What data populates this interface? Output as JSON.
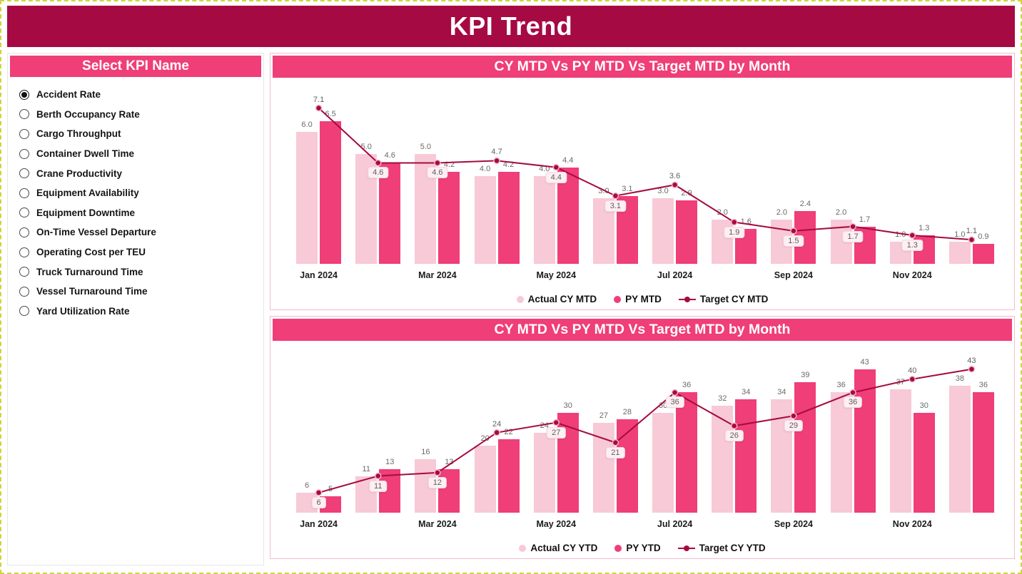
{
  "page": {
    "title": "KPI Trend"
  },
  "slicer": {
    "header": "Select KPI Name",
    "items": [
      {
        "label": "Accident Rate",
        "selected": true
      },
      {
        "label": "Berth Occupancy Rate",
        "selected": false
      },
      {
        "label": "Cargo Throughput",
        "selected": false
      },
      {
        "label": "Container Dwell Time",
        "selected": false
      },
      {
        "label": "Crane Productivity",
        "selected": false
      },
      {
        "label": "Equipment Availability",
        "selected": false
      },
      {
        "label": "Equipment Downtime",
        "selected": false
      },
      {
        "label": "On-Time Vessel Departure",
        "selected": false
      },
      {
        "label": "Operating Cost per TEU",
        "selected": false
      },
      {
        "label": "Truck Turnaround Time",
        "selected": false
      },
      {
        "label": "Vessel Turnaround Time",
        "selected": false
      },
      {
        "label": "Yard Utilization Rate",
        "selected": false
      }
    ]
  },
  "colors": {
    "header": "#a60a42",
    "accent_pink": "#ef3e78",
    "light_pink": "#f8c9d6",
    "target_line": "#a60a42",
    "label_gray": "#6a6a6a"
  },
  "chart_data": [
    {
      "type": "bar",
      "subtype": "column-and-line-combo",
      "title": "CY MTD Vs PY MTD Vs Target MTD by Month",
      "categories": [
        "Jan 2024",
        "Feb 2024",
        "Mar 2024",
        "Apr 2024",
        "May 2024",
        "Jun 2024",
        "Jul 2024",
        "Aug 2024",
        "Sep 2024",
        "Oct 2024",
        "Nov 2024",
        "Dec 2024"
      ],
      "x_tick_labels": [
        "Jan 2024",
        "Mar 2024",
        "May 2024",
        "Jul 2024",
        "Sep 2024",
        "Nov 2024"
      ],
      "decimals": 1,
      "ylim": [
        0,
        7.8
      ],
      "grid": false,
      "legend_position": "bottom",
      "series": [
        {
          "name": "Actual CY MTD",
          "type": "bar",
          "color": "#f8c9d6",
          "values": [
            6.0,
            5.0,
            5.0,
            4.0,
            4.0,
            3.0,
            3.0,
            2.0,
            2.0,
            2.0,
            1.0,
            1.0
          ]
        },
        {
          "name": "PY MTD",
          "type": "bar",
          "color": "#ef3e78",
          "values": [
            6.5,
            4.6,
            4.2,
            4.2,
            4.4,
            3.1,
            2.9,
            1.6,
            2.4,
            1.7,
            1.3,
            0.9
          ]
        },
        {
          "name": "Target CY MTD",
          "type": "line",
          "color": "#a60a42",
          "values": [
            7.1,
            4.6,
            4.6,
            4.7,
            4.4,
            3.1,
            3.6,
            1.9,
            1.5,
            1.7,
            1.3,
            1.1
          ]
        }
      ]
    },
    {
      "type": "bar",
      "subtype": "column-and-line-combo",
      "title": "CY MTD Vs PY MTD Vs Target MTD by Month",
      "categories": [
        "Jan 2024",
        "Feb 2024",
        "Mar 2024",
        "Apr 2024",
        "May 2024",
        "Jun 2024",
        "Jul 2024",
        "Aug 2024",
        "Sep 2024",
        "Oct 2024",
        "Nov 2024",
        "Dec 2024"
      ],
      "x_tick_labels": [
        "Jan 2024",
        "Mar 2024",
        "May 2024",
        "Jul 2024",
        "Sep 2024",
        "Nov 2024"
      ],
      "decimals": 0,
      "ylim": [
        0,
        47
      ],
      "grid": false,
      "legend_position": "bottom",
      "series": [
        {
          "name": "Actual CY YTD",
          "type": "bar",
          "color": "#f8c9d6",
          "values": [
            6,
            11,
            16,
            20,
            24,
            27,
            30,
            32,
            34,
            36,
            37,
            38
          ]
        },
        {
          "name": "PY YTD",
          "type": "bar",
          "color": "#ef3e78",
          "values": [
            5,
            13,
            13,
            22,
            30,
            28,
            36,
            34,
            39,
            43,
            30,
            36
          ]
        },
        {
          "name": "Target CY YTD",
          "type": "line",
          "color": "#a60a42",
          "values": [
            6,
            11,
            12,
            24,
            27,
            21,
            36,
            26,
            29,
            36,
            40,
            43
          ]
        }
      ]
    }
  ]
}
